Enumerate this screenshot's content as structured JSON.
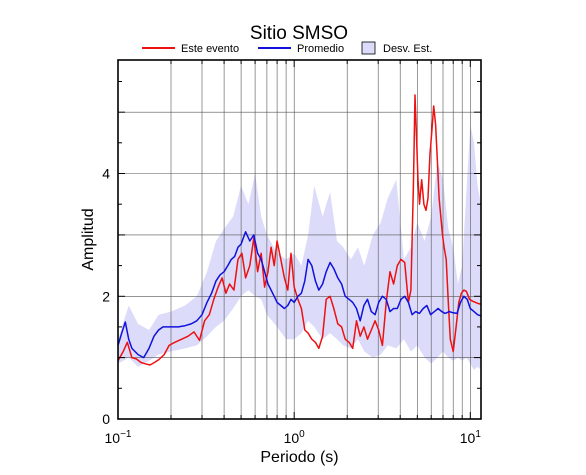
{
  "chart_data": {
    "type": "line",
    "title": "Sitio SMSO",
    "xlabel": "Periodo (s)",
    "ylabel": "Amplitud",
    "xscale": "log",
    "xlim": [
      0.1,
      11.5
    ],
    "ylim": [
      0,
      5.85
    ],
    "grid": true,
    "legend_position": "top",
    "x_ticks": [
      {
        "value": 0.1,
        "base": "10",
        "exp": "−1"
      },
      {
        "value": 1,
        "base": "10",
        "exp": "0"
      },
      {
        "value": 10,
        "base": "10",
        "exp": "1"
      }
    ],
    "y_ticks": [
      {
        "value": 0,
        "label": "0"
      },
      {
        "value": 2,
        "label": "2"
      },
      {
        "value": 4,
        "label": "4"
      }
    ],
    "series": [
      {
        "name": "Este evento",
        "color": "#ee1111",
        "x": [
          0.1,
          0.107,
          0.113,
          0.12,
          0.127,
          0.135,
          0.143,
          0.152,
          0.161,
          0.171,
          0.183,
          0.195,
          0.21,
          0.23,
          0.25,
          0.27,
          0.29,
          0.31,
          0.33,
          0.35,
          0.37,
          0.39,
          0.41,
          0.43,
          0.455,
          0.48,
          0.505,
          0.53,
          0.56,
          0.59,
          0.62,
          0.65,
          0.68,
          0.71,
          0.74,
          0.77,
          0.8,
          0.84,
          0.88,
          0.92,
          0.96,
          1.0,
          1.05,
          1.1,
          1.15,
          1.2,
          1.26,
          1.32,
          1.38,
          1.45,
          1.52,
          1.6,
          1.68,
          1.77,
          1.86,
          1.95,
          2.05,
          2.15,
          2.26,
          2.37,
          2.49,
          2.61,
          2.74,
          2.88,
          3.02,
          3.17,
          3.33,
          3.5,
          3.67,
          3.85,
          4.04,
          4.24,
          4.45,
          4.6,
          4.75,
          4.85,
          4.95,
          5.05,
          5.15,
          5.3,
          5.45,
          5.6,
          5.75,
          5.9,
          6.05,
          6.2,
          6.35,
          6.5,
          6.65,
          6.8,
          6.95,
          7.1,
          7.3,
          7.5,
          7.7,
          8.0,
          8.3,
          8.6,
          8.9,
          9.2,
          9.5,
          9.9,
          10.3,
          10.7,
          11.1,
          11.5
        ],
        "values": [
          0.95,
          1.1,
          1.25,
          1.0,
          0.98,
          0.92,
          0.9,
          0.88,
          0.92,
          0.97,
          1.05,
          1.2,
          1.25,
          1.3,
          1.35,
          1.42,
          1.28,
          1.6,
          1.7,
          1.95,
          2.15,
          2.3,
          2.05,
          2.2,
          2.1,
          2.6,
          2.7,
          2.3,
          2.5,
          2.95,
          2.4,
          2.7,
          2.15,
          2.4,
          2.8,
          2.5,
          2.9,
          2.6,
          2.3,
          2.1,
          2.7,
          2.15,
          1.95,
          1.8,
          1.45,
          1.4,
          1.3,
          1.25,
          1.15,
          1.35,
          1.95,
          2.0,
          1.8,
          1.55,
          1.5,
          1.3,
          1.25,
          1.15,
          1.6,
          1.35,
          1.5,
          1.3,
          1.45,
          1.6,
          1.45,
          1.2,
          1.9,
          2.4,
          2.2,
          2.5,
          2.6,
          2.55,
          1.9,
          2.1,
          3.8,
          5.28,
          4.6,
          3.9,
          3.5,
          3.9,
          3.5,
          3.4,
          3.6,
          4.3,
          4.7,
          5.1,
          4.8,
          4.2,
          3.6,
          3.3,
          3.0,
          2.8,
          2.6,
          1.9,
          1.3,
          1.1,
          1.5,
          1.9,
          2.05,
          2.1,
          2.08,
          1.95,
          1.92,
          1.9,
          1.88,
          1.87
        ]
      },
      {
        "name": "Promedio",
        "color": "#1111dd",
        "x": [
          0.1,
          0.105,
          0.11,
          0.115,
          0.12,
          0.13,
          0.14,
          0.15,
          0.16,
          0.17,
          0.18,
          0.19,
          0.2,
          0.22,
          0.24,
          0.26,
          0.28,
          0.3,
          0.32,
          0.34,
          0.36,
          0.38,
          0.4,
          0.42,
          0.44,
          0.46,
          0.48,
          0.5,
          0.53,
          0.56,
          0.59,
          0.62,
          0.65,
          0.68,
          0.71,
          0.74,
          0.77,
          0.8,
          0.84,
          0.88,
          0.92,
          0.96,
          1.0,
          1.05,
          1.1,
          1.15,
          1.2,
          1.26,
          1.32,
          1.38,
          1.45,
          1.52,
          1.6,
          1.68,
          1.77,
          1.86,
          1.95,
          2.05,
          2.15,
          2.26,
          2.37,
          2.49,
          2.61,
          2.74,
          2.88,
          3.02,
          3.17,
          3.33,
          3.5,
          3.67,
          3.85,
          4.04,
          4.24,
          4.45,
          4.67,
          4.9,
          5.14,
          5.4,
          5.67,
          5.95,
          6.25,
          6.56,
          6.88,
          7.2,
          7.6,
          8.0,
          8.4,
          8.8,
          9.2,
          9.6,
          10.0,
          10.5,
          11.0,
          11.5
        ],
        "values": [
          1.2,
          1.4,
          1.58,
          1.3,
          1.15,
          1.05,
          1.0,
          1.15,
          1.35,
          1.45,
          1.5,
          1.5,
          1.5,
          1.5,
          1.52,
          1.55,
          1.6,
          1.7,
          1.9,
          2.05,
          2.25,
          2.35,
          2.4,
          2.5,
          2.6,
          2.65,
          2.8,
          2.85,
          3.05,
          2.9,
          3.0,
          2.7,
          2.6,
          2.4,
          2.2,
          2.1,
          2.0,
          1.9,
          1.85,
          1.8,
          1.85,
          1.95,
          1.9,
          2.0,
          2.05,
          2.25,
          2.6,
          2.5,
          2.25,
          2.1,
          2.2,
          2.4,
          2.55,
          2.45,
          2.3,
          2.2,
          2.0,
          1.95,
          1.9,
          1.8,
          1.6,
          1.85,
          1.95,
          1.75,
          1.7,
          1.9,
          2.0,
          1.95,
          1.75,
          1.8,
          1.8,
          1.95,
          2.0,
          1.9,
          1.7,
          1.75,
          1.72,
          1.8,
          1.85,
          1.7,
          1.75,
          1.8,
          1.75,
          1.72,
          1.75,
          1.73,
          1.72,
          1.9,
          2.0,
          1.95,
          1.8,
          1.75,
          1.7,
          1.68
        ]
      }
    ],
    "band": {
      "name": "Desv. Est.",
      "fill": "#dcdcfa",
      "edge": "#000000",
      "x": [
        0.1,
        0.115,
        0.13,
        0.15,
        0.17,
        0.2,
        0.24,
        0.28,
        0.32,
        0.36,
        0.4,
        0.45,
        0.5,
        0.55,
        0.6,
        0.65,
        0.7,
        0.8,
        0.9,
        1.0,
        1.1,
        1.2,
        1.3,
        1.45,
        1.6,
        1.75,
        1.9,
        2.1,
        2.3,
        2.5,
        2.8,
        3.1,
        3.4,
        3.8,
        4.2,
        4.6,
        5.0,
        5.5,
        6.0,
        6.5,
        7.0,
        7.5,
        8.0,
        8.5,
        9.0,
        9.5,
        10.0,
        10.5,
        11.0,
        11.5
      ],
      "upper": [
        1.3,
        1.85,
        1.55,
        1.45,
        1.7,
        1.75,
        1.85,
        2.0,
        2.4,
        2.9,
        3.1,
        3.3,
        3.8,
        3.5,
        4.0,
        3.3,
        3.0,
        2.7,
        2.6,
        2.7,
        2.5,
        3.0,
        3.8,
        3.3,
        3.7,
        2.9,
        2.8,
        2.6,
        2.8,
        2.5,
        3.0,
        3.2,
        3.6,
        3.9,
        2.6,
        2.8,
        3.2,
        2.9,
        3.3,
        4.2,
        3.9,
        3.1,
        2.8,
        2.2,
        2.5,
        3.7,
        4.8,
        4.5,
        3.8,
        3.5
      ],
      "lower": [
        0.9,
        1.0,
        0.85,
        0.95,
        1.05,
        1.1,
        1.15,
        1.2,
        1.35,
        1.5,
        1.6,
        1.8,
        2.0,
        2.1,
        2.0,
        1.95,
        1.7,
        1.5,
        1.3,
        1.3,
        1.4,
        1.6,
        1.5,
        1.3,
        1.4,
        1.3,
        1.2,
        1.15,
        1.3,
        1.1,
        1.0,
        1.05,
        1.2,
        1.15,
        1.3,
        1.1,
        1.2,
        1.0,
        0.9,
        1.0,
        1.1,
        1.0,
        0.95,
        1.0,
        0.95,
        1.0,
        0.9,
        0.8,
        0.85,
        0.8
      ]
    }
  }
}
